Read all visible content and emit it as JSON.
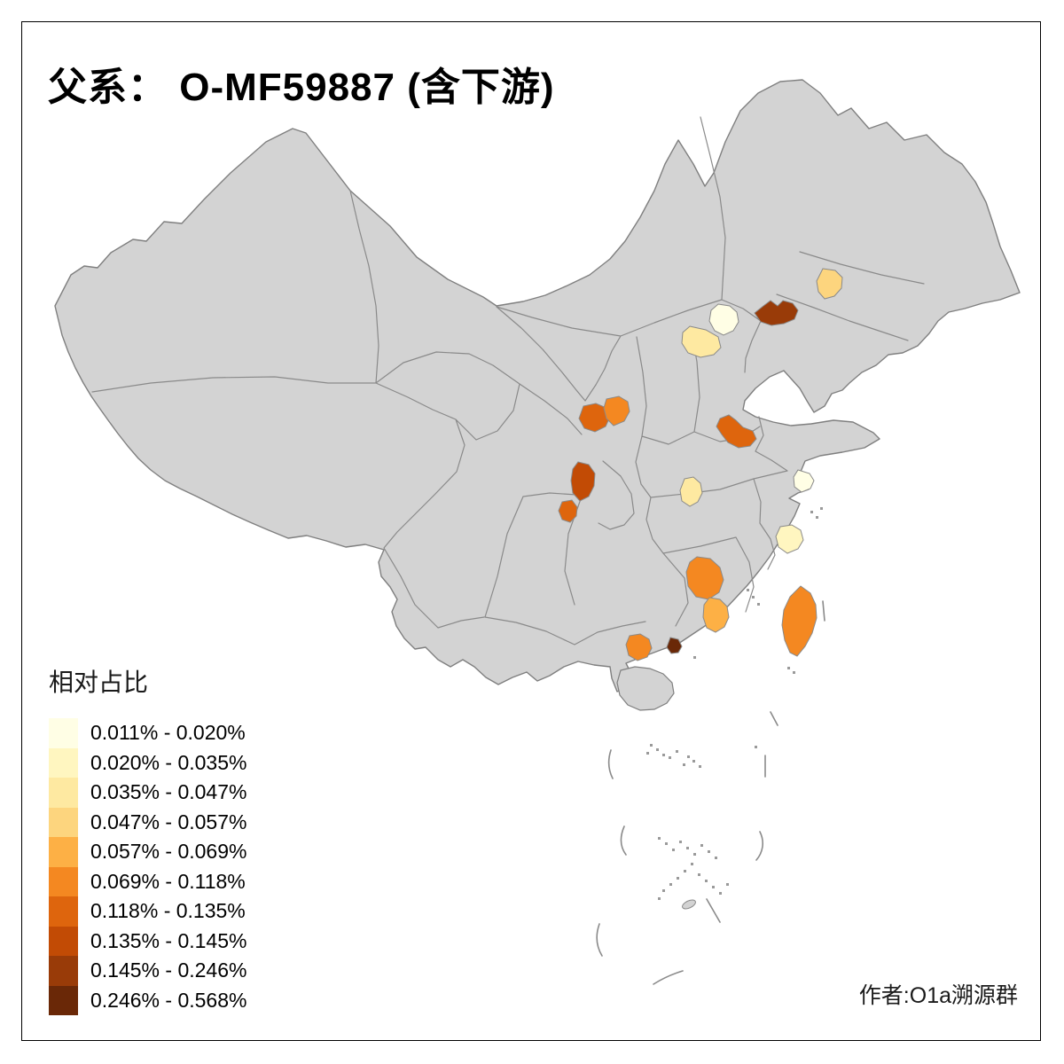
{
  "title": "父系： O-MF59887 (含下游)",
  "attribution": "作者:O1a溯源群",
  "legend": {
    "title": "相对占比",
    "items": [
      {
        "label": "0.011% - 0.020%",
        "color": "#FFFEE5"
      },
      {
        "label": "0.020% - 0.035%",
        "color": "#FFF6C0"
      },
      {
        "label": "0.035% - 0.047%",
        "color": "#FEE9A1"
      },
      {
        "label": "0.047% - 0.057%",
        "color": "#FDD57E"
      },
      {
        "label": "0.057% - 0.069%",
        "color": "#FDB045"
      },
      {
        "label": "0.069% - 0.118%",
        "color": "#F48821"
      },
      {
        "label": "0.118% - 0.135%",
        "color": "#DE650D"
      },
      {
        "label": "0.135% - 0.145%",
        "color": "#C24B05"
      },
      {
        "label": "0.145% - 0.246%",
        "color": "#993B08"
      },
      {
        "label": "0.246% - 0.568%",
        "color": "#6A2807"
      }
    ]
  },
  "map": {
    "land_color": "#D3D3D3",
    "border_color": "#8a8a8a",
    "background_color": "#FFFFFF",
    "regions": [
      {
        "id": "beijing",
        "bin": "0.011% - 0.020%",
        "color": "#FFFEE5"
      },
      {
        "id": "central-hebei",
        "bin": "0.035% - 0.047%",
        "color": "#FEE9A1"
      },
      {
        "id": "west-liaoning",
        "bin": "0.145% - 0.246%",
        "color": "#993B08"
      },
      {
        "id": "shenyang-area",
        "bin": "0.047% - 0.057%",
        "color": "#FDD57E"
      },
      {
        "id": "west-shaanxi",
        "bin": "0.118% - 0.135%",
        "color": "#DE650D"
      },
      {
        "id": "central-shaanxi",
        "bin": "0.069% - 0.118%",
        "color": "#F48821"
      },
      {
        "id": "nanjing-jiangsu",
        "bin": "0.118% - 0.135%",
        "color": "#DE650D"
      },
      {
        "id": "wuhan-hubei",
        "bin": "0.035% - 0.047%",
        "color": "#FEE9A1"
      },
      {
        "id": "shanghai",
        "bin": "0.011% - 0.020%",
        "color": "#FFFEE5"
      },
      {
        "id": "south-zhejiang",
        "bin": "0.020% - 0.035%",
        "color": "#FFF6C0"
      },
      {
        "id": "chengdu-sichuan",
        "bin": "0.135% - 0.145%",
        "color": "#C24B05"
      },
      {
        "id": "south-sichuan",
        "bin": "0.118% - 0.135%",
        "color": "#DE650D"
      },
      {
        "id": "south-jiangxi",
        "bin": "0.069% - 0.118%",
        "color": "#F48821"
      },
      {
        "id": "east-guangdong",
        "bin": "0.057% - 0.069%",
        "color": "#FDB045"
      },
      {
        "id": "pearl-river-delta",
        "bin": "0.246% - 0.568%",
        "color": "#6A2807"
      },
      {
        "id": "west-guangdong",
        "bin": "0.069% - 0.118%",
        "color": "#F48821"
      },
      {
        "id": "taiwan",
        "bin": "0.069% - 0.118%",
        "color": "#F48821"
      }
    ]
  },
  "chart_data": {
    "type": "choropleth",
    "title": "父系： O-MF59887 (含下游)",
    "legend_title": "相对占比",
    "legend_position": "bottom-left",
    "bins": [
      "0.011% - 0.020%",
      "0.020% - 0.035%",
      "0.035% - 0.047%",
      "0.047% - 0.057%",
      "0.057% - 0.069%",
      "0.069% - 0.118%",
      "0.118% - 0.135%",
      "0.135% - 0.145%",
      "0.145% - 0.246%",
      "0.246% - 0.568%"
    ],
    "bin_colors": [
      "#FFFEE5",
      "#FFF6C0",
      "#FEE9A1",
      "#FDD57E",
      "#FDB045",
      "#F48821",
      "#DE650D",
      "#C24B05",
      "#993B08",
      "#6A2807"
    ],
    "regions": [
      {
        "area": "Beijing",
        "bin": "0.011% - 0.020%"
      },
      {
        "area": "central Hebei",
        "bin": "0.035% - 0.047%"
      },
      {
        "area": "western Liaoning",
        "bin": "0.145% - 0.246%"
      },
      {
        "area": "Shenyang area (NE Liaoning)",
        "bin": "0.047% - 0.057%"
      },
      {
        "area": "western Shaanxi (Guanzhong west)",
        "bin": "0.118% - 0.135%"
      },
      {
        "area": "central Shaanxi (Guanzhong east)",
        "bin": "0.069% - 0.118%"
      },
      {
        "area": "Nanjing area, Jiangsu",
        "bin": "0.118% - 0.135%"
      },
      {
        "area": "Wuhan area, Hubei",
        "bin": "0.035% - 0.047%"
      },
      {
        "area": "Shanghai",
        "bin": "0.011% - 0.020%"
      },
      {
        "area": "southern Zhejiang (Wenzhou area)",
        "bin": "0.020% - 0.035%"
      },
      {
        "area": "Chengdu area, Sichuan",
        "bin": "0.135% - 0.145%"
      },
      {
        "area": "southern Sichuan",
        "bin": "0.118% - 0.135%"
      },
      {
        "area": "southern Jiangxi (Ganzhou area)",
        "bin": "0.069% - 0.118%"
      },
      {
        "area": "eastern Guangdong",
        "bin": "0.057% - 0.069%"
      },
      {
        "area": "Pearl River Delta, Guangdong",
        "bin": "0.246% - 0.568%"
      },
      {
        "area": "western Guangdong (Jiangmen area)",
        "bin": "0.069% - 0.118%"
      },
      {
        "area": "Taiwan",
        "bin": "0.069% - 0.118%"
      }
    ]
  }
}
